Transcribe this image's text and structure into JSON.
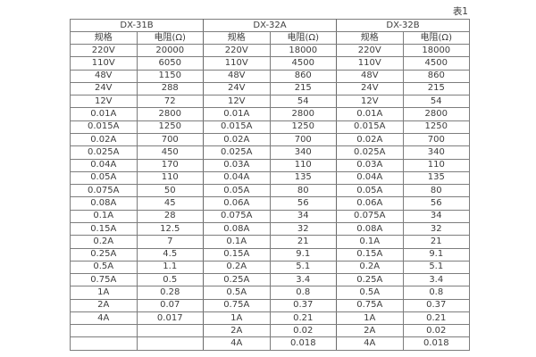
{
  "caption": "表1",
  "colors": {
    "background": "#ffffff",
    "text": "#3d3d3d",
    "border": "#7d7d7d"
  },
  "table": {
    "groups": [
      {
        "name": "DX-31B",
        "spec_header": "规格",
        "res_header": "电阻(Ω)"
      },
      {
        "name": "DX-32A",
        "spec_header": "规格",
        "res_header": "电阻(Ω)"
      },
      {
        "name": "DX-32B",
        "spec_header": "规格",
        "res_header": "电阻(Ω)"
      }
    ],
    "rows": [
      [
        "220V",
        "20000",
        "220V",
        "18000",
        "220V",
        "18000"
      ],
      [
        "110V",
        "6050",
        "110V",
        "4500",
        "110V",
        "4500"
      ],
      [
        "48V",
        "1150",
        "48V",
        "860",
        "48V",
        "860"
      ],
      [
        "24V",
        "288",
        "24V",
        "215",
        "24V",
        "215"
      ],
      [
        "12V",
        "72",
        "12V",
        "54",
        "12V",
        "54"
      ],
      [
        "0.01A",
        "2800",
        "0.01A",
        "2800",
        "0.01A",
        "2800"
      ],
      [
        "0.015A",
        "1250",
        "0.015A",
        "1250",
        "0.015A",
        "1250"
      ],
      [
        "0.02A",
        "700",
        "0.02A",
        "700",
        "0.02A",
        "700"
      ],
      [
        "0.025A",
        "450",
        "0.025A",
        "340",
        "0.025A",
        "340"
      ],
      [
        "0.04A",
        "170",
        "0.03A",
        "110",
        "0.03A",
        "110"
      ],
      [
        "0.05A",
        "110",
        "0.04A",
        "135",
        "0.04A",
        "135"
      ],
      [
        "0.075A",
        "50",
        "0.05A",
        "80",
        "0.05A",
        "80"
      ],
      [
        "0.08A",
        "45",
        "0.06A",
        "56",
        "0.06A",
        "56"
      ],
      [
        "0.1A",
        "28",
        "0.075A",
        "34",
        "0.075A",
        "34"
      ],
      [
        "0.15A",
        "12.5",
        "0.08A",
        "32",
        "0.08A",
        "32"
      ],
      [
        "0.2A",
        "7",
        "0.1A",
        "21",
        "0.1A",
        "21"
      ],
      [
        "0.25A",
        "4.5",
        "0.15A",
        "9.1",
        "0.15A",
        "9.1"
      ],
      [
        "0.5A",
        "1.1",
        "0.2A",
        "5.1",
        "0.2A",
        "5.1"
      ],
      [
        "0.75A",
        "0.5",
        "0.25A",
        "3.4",
        "0.25A",
        "3.4"
      ],
      [
        "1A",
        "0.28",
        "0.5A",
        "0.8",
        "0.5A",
        "0.8"
      ],
      [
        "2A",
        "0.07",
        "0.75A",
        "0.37",
        "0.75A",
        "0.37"
      ],
      [
        "4A",
        "0.017",
        "1A",
        "0.21",
        "1A",
        "0.21"
      ],
      [
        "",
        "",
        "2A",
        "0.02",
        "2A",
        "0.02"
      ],
      [
        "",
        "",
        "4A",
        "0.018",
        "4A",
        "0.018"
      ]
    ]
  }
}
